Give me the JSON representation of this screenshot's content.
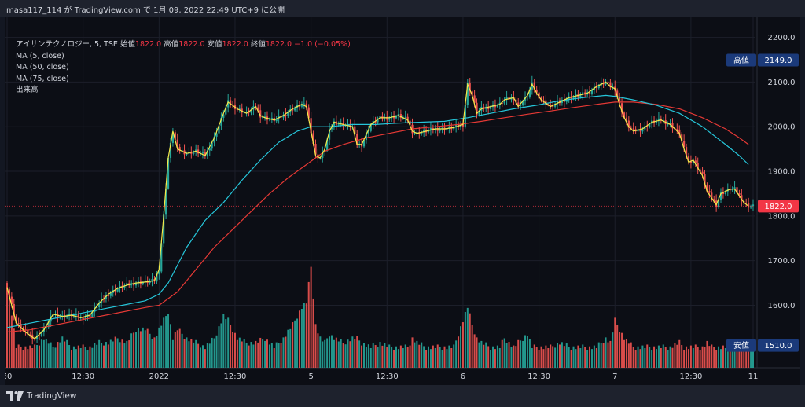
{
  "top_bar": {
    "text": "masa117_114 が TradingView.com で 1月 09, 2022 22:49 UTC+9 に公開"
  },
  "legend": {
    "symbol": "アイサンテクノロジー, 5, TSE",
    "ohlc": [
      {
        "label": "始値",
        "value": "1822.0"
      },
      {
        "label": "高値",
        "value": "1822.0"
      },
      {
        "label": "安値",
        "value": "1822.0"
      },
      {
        "label": "終値",
        "value": "1822.0"
      }
    ],
    "change": "−1.0 (−0.05%)",
    "indicators": [
      "MA (5, close)",
      "MA (50, close)",
      "MA (75, close)",
      "出来高"
    ]
  },
  "price_tags": {
    "high": {
      "label": "高値",
      "value": "2149.0"
    },
    "low": {
      "label": "安値",
      "value": "1510.0"
    },
    "last": {
      "value": "1822.0"
    }
  },
  "footer": {
    "brand": "TradingView"
  },
  "colors": {
    "background": "#0c0e15",
    "bar_background": "#1e222d",
    "grid": "#1c1f2a",
    "candle_up": "#26a69a",
    "candle_down": "#ef5350",
    "ma5": "#f5e94a",
    "ma50": "#26c6da",
    "ma75": "#e53935",
    "tag_blue": "#1b3a7a",
    "tag_red": "#f23645"
  },
  "chart_data": {
    "type": "candlestick",
    "y_axis": {
      "range": [
        1460,
        2245
      ],
      "ticks": [
        1600,
        1700,
        1800,
        1900,
        2000,
        2100,
        2200
      ],
      "tick_labels": [
        "1600.0",
        "1700.0",
        "1800.0",
        "1900.0",
        "2000.0",
        "2100.0",
        "2200.0"
      ]
    },
    "x_axis": {
      "range": [
        0,
        324
      ],
      "ticks": [
        {
          "x": 0,
          "label": "30"
        },
        {
          "x": 33,
          "label": "12:30"
        },
        {
          "x": 66,
          "label": "2022"
        },
        {
          "x": 99,
          "label": "12:30"
        },
        {
          "x": 132,
          "label": "5"
        },
        {
          "x": 165,
          "label": "12:30"
        },
        {
          "x": 198,
          "label": "6"
        },
        {
          "x": 231,
          "label": "12:30"
        },
        {
          "x": 264,
          "label": "7"
        },
        {
          "x": 297,
          "label": "12:30"
        },
        {
          "x": 324,
          "label": "11"
        }
      ]
    },
    "price_path": [
      [
        0,
        1640
      ],
      [
        4,
        1560
      ],
      [
        8,
        1540
      ],
      [
        12,
        1525
      ],
      [
        16,
        1545
      ],
      [
        20,
        1580
      ],
      [
        24,
        1575
      ],
      [
        28,
        1578
      ],
      [
        32,
        1572
      ],
      [
        36,
        1578
      ],
      [
        40,
        1605
      ],
      [
        44,
        1625
      ],
      [
        48,
        1638
      ],
      [
        52,
        1645
      ],
      [
        56,
        1650
      ],
      [
        60,
        1652
      ],
      [
        64,
        1655
      ],
      [
        66,
        1680
      ],
      [
        68,
        1800
      ],
      [
        70,
        1930
      ],
      [
        72,
        1990
      ],
      [
        74,
        1950
      ],
      [
        78,
        1940
      ],
      [
        82,
        1945
      ],
      [
        86,
        1935
      ],
      [
        90,
        1975
      ],
      [
        94,
        2030
      ],
      [
        96,
        2055
      ],
      [
        100,
        2040
      ],
      [
        104,
        2030
      ],
      [
        108,
        2045
      ],
      [
        110,
        2025
      ],
      [
        112,
        2020
      ],
      [
        116,
        2015
      ],
      [
        120,
        2025
      ],
      [
        124,
        2040
      ],
      [
        128,
        2050
      ],
      [
        130,
        2045
      ],
      [
        132,
        1990
      ],
      [
        134,
        1935
      ],
      [
        136,
        1930
      ],
      [
        138,
        1950
      ],
      [
        140,
        1990
      ],
      [
        142,
        2010
      ],
      [
        146,
        2005
      ],
      [
        150,
        2000
      ],
      [
        152,
        1960
      ],
      [
        154,
        1960
      ],
      [
        158,
        2005
      ],
      [
        162,
        2020
      ],
      [
        166,
        2020
      ],
      [
        170,
        2025
      ],
      [
        174,
        2015
      ],
      [
        176,
        1990
      ],
      [
        178,
        1985
      ],
      [
        182,
        1990
      ],
      [
        186,
        1995
      ],
      [
        190,
        1995
      ],
      [
        194,
        1998
      ],
      [
        198,
        2005
      ],
      [
        200,
        2095
      ],
      [
        202,
        2070
      ],
      [
        204,
        2030
      ],
      [
        206,
        2040
      ],
      [
        210,
        2045
      ],
      [
        214,
        2050
      ],
      [
        216,
        2060
      ],
      [
        220,
        2065
      ],
      [
        222,
        2045
      ],
      [
        226,
        2070
      ],
      [
        228,
        2095
      ],
      [
        230,
        2075
      ],
      [
        232,
        2060
      ],
      [
        236,
        2045
      ],
      [
        240,
        2055
      ],
      [
        244,
        2065
      ],
      [
        248,
        2070
      ],
      [
        252,
        2075
      ],
      [
        256,
        2090
      ],
      [
        260,
        2100
      ],
      [
        262,
        2090
      ],
      [
        264,
        2085
      ],
      [
        266,
        2050
      ],
      [
        268,
        2020
      ],
      [
        270,
        2000
      ],
      [
        272,
        1990
      ],
      [
        276,
        1995
      ],
      [
        280,
        2010
      ],
      [
        284,
        2015
      ],
      [
        288,
        2005
      ],
      [
        292,
        1985
      ],
      [
        294,
        1950
      ],
      [
        296,
        1920
      ],
      [
        298,
        1925
      ],
      [
        302,
        1890
      ],
      [
        304,
        1855
      ],
      [
        306,
        1840
      ],
      [
        308,
        1825
      ],
      [
        310,
        1850
      ],
      [
        314,
        1860
      ],
      [
        316,
        1860
      ],
      [
        318,
        1845
      ],
      [
        320,
        1830
      ],
      [
        322,
        1822
      ]
    ],
    "volume_path": [
      [
        0,
        1650
      ],
      [
        4,
        1500
      ],
      [
        8,
        1500
      ],
      [
        12,
        1500
      ],
      [
        16,
        1520
      ],
      [
        20,
        1500
      ],
      [
        24,
        1520
      ],
      [
        28,
        1500
      ],
      [
        32,
        1500
      ],
      [
        36,
        1500
      ],
      [
        40,
        1510
      ],
      [
        44,
        1510
      ],
      [
        48,
        1520
      ],
      [
        52,
        1510
      ],
      [
        56,
        1540
      ],
      [
        60,
        1540
      ],
      [
        64,
        1520
      ],
      [
        66,
        1540
      ],
      [
        68,
        1560
      ],
      [
        70,
        1580
      ],
      [
        72,
        1520
      ],
      [
        74,
        1540
      ],
      [
        78,
        1520
      ],
      [
        82,
        1510
      ],
      [
        86,
        1500
      ],
      [
        90,
        1520
      ],
      [
        94,
        1570
      ],
      [
        96,
        1560
      ],
      [
        100,
        1520
      ],
      [
        104,
        1510
      ],
      [
        108,
        1510
      ],
      [
        112,
        1520
      ],
      [
        116,
        1500
      ],
      [
        120,
        1520
      ],
      [
        124,
        1550
      ],
      [
        128,
        1590
      ],
      [
        130,
        1600
      ],
      [
        132,
        1680
      ],
      [
        134,
        1550
      ],
      [
        136,
        1520
      ],
      [
        138,
        1510
      ],
      [
        140,
        1530
      ],
      [
        142,
        1520
      ],
      [
        146,
        1510
      ],
      [
        150,
        1520
      ],
      [
        152,
        1520
      ],
      [
        154,
        1510
      ],
      [
        158,
        1500
      ],
      [
        162,
        1510
      ],
      [
        166,
        1500
      ],
      [
        170,
        1500
      ],
      [
        174,
        1500
      ],
      [
        176,
        1520
      ],
      [
        178,
        1510
      ],
      [
        182,
        1500
      ],
      [
        186,
        1500
      ],
      [
        190,
        1500
      ],
      [
        194,
        1500
      ],
      [
        198,
        1560
      ],
      [
        200,
        1590
      ],
      [
        202,
        1550
      ],
      [
        204,
        1520
      ],
      [
        206,
        1510
      ],
      [
        210,
        1500
      ],
      [
        214,
        1500
      ],
      [
        216,
        1520
      ],
      [
        220,
        1500
      ],
      [
        222,
        1510
      ],
      [
        226,
        1530
      ],
      [
        228,
        1500
      ],
      [
        230,
        1500
      ],
      [
        232,
        1500
      ],
      [
        236,
        1500
      ],
      [
        240,
        1510
      ],
      [
        244,
        1500
      ],
      [
        248,
        1500
      ],
      [
        252,
        1500
      ],
      [
        256,
        1500
      ],
      [
        260,
        1520
      ],
      [
        262,
        1510
      ],
      [
        264,
        1560
      ],
      [
        266,
        1540
      ],
      [
        268,
        1520
      ],
      [
        270,
        1510
      ],
      [
        272,
        1500
      ],
      [
        276,
        1500
      ],
      [
        280,
        1500
      ],
      [
        284,
        1500
      ],
      [
        288,
        1500
      ],
      [
        292,
        1510
      ],
      [
        294,
        1500
      ],
      [
        296,
        1500
      ],
      [
        298,
        1500
      ],
      [
        302,
        1500
      ],
      [
        304,
        1510
      ],
      [
        306,
        1500
      ],
      [
        308,
        1500
      ],
      [
        310,
        1500
      ],
      [
        314,
        1500
      ],
      [
        316,
        1500
      ],
      [
        318,
        1500
      ],
      [
        320,
        1510
      ],
      [
        322,
        1500
      ]
    ],
    "ma50": [
      [
        0,
        1550
      ],
      [
        10,
        1560
      ],
      [
        20,
        1570
      ],
      [
        30,
        1580
      ],
      [
        40,
        1590
      ],
      [
        50,
        1600
      ],
      [
        60,
        1610
      ],
      [
        66,
        1625
      ],
      [
        70,
        1650
      ],
      [
        78,
        1730
      ],
      [
        86,
        1790
      ],
      [
        94,
        1830
      ],
      [
        102,
        1880
      ],
      [
        110,
        1925
      ],
      [
        118,
        1965
      ],
      [
        126,
        1990
      ],
      [
        132,
        2000
      ],
      [
        140,
        2000
      ],
      [
        150,
        2005
      ],
      [
        160,
        2005
      ],
      [
        170,
        2008
      ],
      [
        180,
        2010
      ],
      [
        190,
        2012
      ],
      [
        200,
        2020
      ],
      [
        210,
        2030
      ],
      [
        220,
        2040
      ],
      [
        230,
        2048
      ],
      [
        240,
        2058
      ],
      [
        250,
        2065
      ],
      [
        260,
        2070
      ],
      [
        264,
        2068
      ],
      [
        272,
        2060
      ],
      [
        282,
        2048
      ],
      [
        292,
        2030
      ],
      [
        302,
        2000
      ],
      [
        312,
        1960
      ],
      [
        318,
        1935
      ],
      [
        322,
        1915
      ]
    ],
    "ma75": [
      [
        0,
        1540
      ],
      [
        10,
        1545
      ],
      [
        20,
        1555
      ],
      [
        30,
        1565
      ],
      [
        40,
        1575
      ],
      [
        50,
        1585
      ],
      [
        60,
        1595
      ],
      [
        66,
        1600
      ],
      [
        74,
        1630
      ],
      [
        82,
        1680
      ],
      [
        90,
        1730
      ],
      [
        98,
        1770
      ],
      [
        106,
        1810
      ],
      [
        114,
        1850
      ],
      [
        122,
        1885
      ],
      [
        130,
        1915
      ],
      [
        138,
        1945
      ],
      [
        146,
        1960
      ],
      [
        156,
        1975
      ],
      [
        166,
        1985
      ],
      [
        176,
        1995
      ],
      [
        186,
        2000
      ],
      [
        196,
        2005
      ],
      [
        206,
        2012
      ],
      [
        216,
        2020
      ],
      [
        226,
        2028
      ],
      [
        236,
        2035
      ],
      [
        246,
        2043
      ],
      [
        256,
        2050
      ],
      [
        264,
        2055
      ],
      [
        272,
        2055
      ],
      [
        282,
        2050
      ],
      [
        292,
        2040
      ],
      [
        302,
        2020
      ],
      [
        312,
        1995
      ],
      [
        318,
        1975
      ],
      [
        322,
        1960
      ]
    ]
  }
}
